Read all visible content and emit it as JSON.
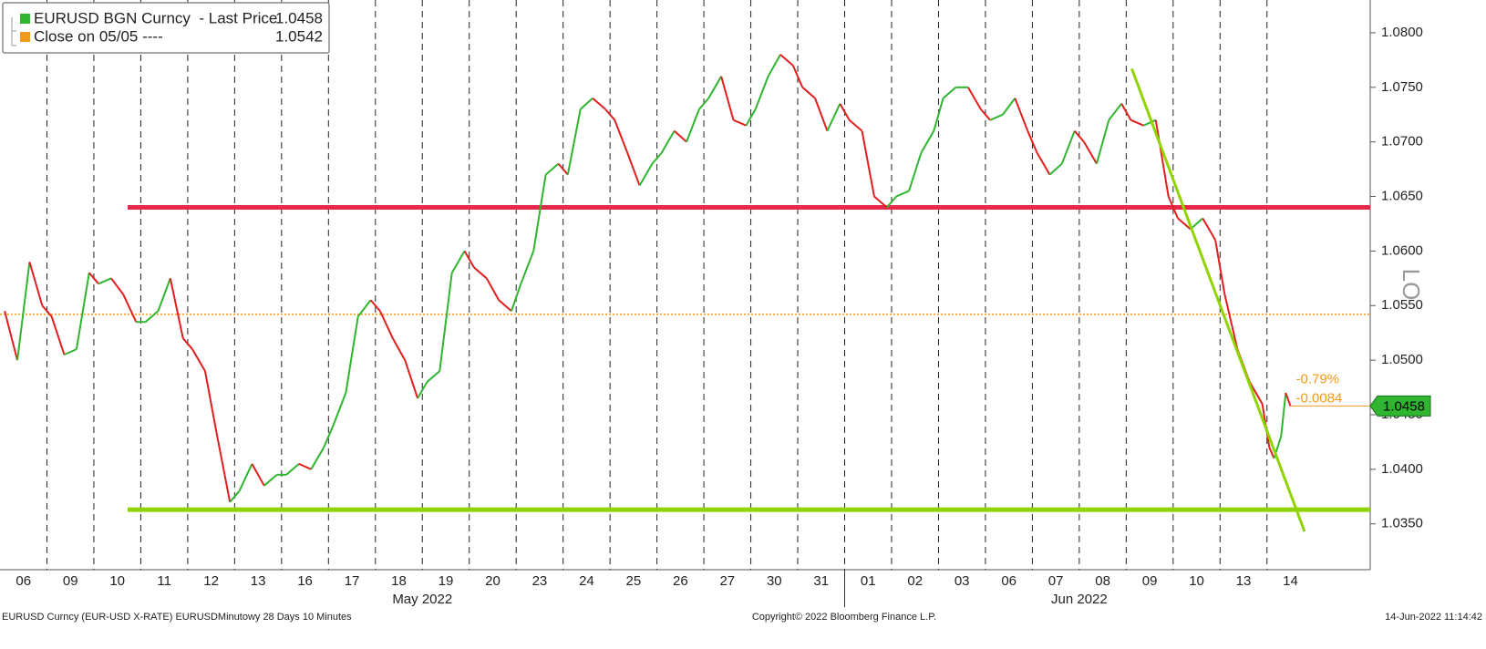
{
  "chart_data": {
    "type": "line",
    "legend": [
      {
        "label": "EURUSD BGN Curncy  - Last Price",
        "value": 1.0458,
        "color": "#2fb52f"
      },
      {
        "label": "Close on 05/05 ----",
        "value": 1.0542,
        "color": "#f09a1c"
      }
    ],
    "x": [
      0.1,
      0.37,
      0.63,
      0.9,
      1.1,
      1.37,
      1.63,
      1.9,
      2.1,
      2.37,
      2.63,
      2.9,
      3.1,
      3.37,
      3.63,
      3.9,
      4.1,
      4.37,
      4.63,
      4.9,
      5.1,
      5.37,
      5.63,
      5.9,
      6.1,
      6.37,
      6.63,
      6.9,
      7.1,
      7.37,
      7.63,
      7.9,
      8.1,
      8.37,
      8.63,
      8.9,
      9.1,
      9.37,
      9.63,
      9.9,
      10.1,
      10.37,
      10.63,
      10.9,
      11.1,
      11.37,
      11.63,
      11.9,
      12.1,
      12.37,
      12.63,
      12.9,
      13.1,
      13.37,
      13.63,
      13.9,
      14.1,
      14.37,
      14.63,
      14.9,
      15.1,
      15.37,
      15.63,
      15.9,
      16.1,
      16.37,
      16.63,
      16.9,
      17.1,
      17.37,
      17.63,
      17.9,
      18.1,
      18.37,
      18.63,
      18.9,
      19.1,
      19.37,
      19.63,
      19.9,
      20.1,
      20.37,
      20.63,
      20.9,
      21.1,
      21.37,
      21.63,
      21.9,
      22.1,
      22.37,
      22.63,
      22.9,
      23.1,
      23.37,
      23.63,
      23.9,
      24.1,
      24.37,
      24.63,
      24.9,
      25.1,
      25.37,
      25.63,
      25.9,
      26.1,
      26.37,
      26.63,
      26.9,
      27.05,
      27.15,
      27.3,
      27.4,
      27.5
    ],
    "series": [
      {
        "name": "EURUSD BGN Curncy",
        "values": [
          1.0545,
          1.05,
          1.059,
          1.055,
          1.054,
          1.0505,
          1.051,
          1.058,
          1.057,
          1.0575,
          1.056,
          1.0535,
          1.0535,
          1.0545,
          1.0575,
          1.052,
          1.051,
          1.049,
          1.043,
          1.037,
          1.038,
          1.0405,
          1.0385,
          1.0395,
          1.0395,
          1.0405,
          1.04,
          1.042,
          1.044,
          1.047,
          1.054,
          1.0555,
          1.0545,
          1.052,
          1.05,
          1.0465,
          1.048,
          1.049,
          1.058,
          1.06,
          1.0585,
          1.0575,
          1.0555,
          1.0545,
          1.057,
          1.06,
          1.067,
          1.068,
          1.067,
          1.073,
          1.074,
          1.073,
          1.072,
          1.069,
          1.066,
          1.068,
          1.069,
          1.071,
          1.07,
          1.073,
          1.074,
          1.076,
          1.072,
          1.0715,
          1.073,
          1.076,
          1.078,
          1.077,
          1.075,
          1.074,
          1.071,
          1.0735,
          1.072,
          1.071,
          1.065,
          1.064,
          1.065,
          1.0655,
          1.069,
          1.071,
          1.074,
          1.075,
          1.075,
          1.073,
          1.072,
          1.0725,
          1.074,
          1.071,
          1.069,
          1.067,
          1.068,
          1.071,
          1.07,
          1.068,
          1.072,
          1.0735,
          1.072,
          1.0715,
          1.072,
          1.065,
          1.063,
          1.062,
          1.063,
          1.061,
          1.056,
          1.051,
          1.048,
          1.046,
          1.042,
          1.041,
          1.043,
          1.047,
          1.0458
        ]
      }
    ],
    "up_color": "#2fb52f",
    "down_color": "#e31e1e",
    "xlim": [
      0,
      29.2
    ],
    "xticks": [
      {
        "value": 0.5,
        "label": "06"
      },
      {
        "value": 1.5,
        "label": "09"
      },
      {
        "value": 2.5,
        "label": "10"
      },
      {
        "value": 3.5,
        "label": "11"
      },
      {
        "value": 4.5,
        "label": "12"
      },
      {
        "value": 5.5,
        "label": "13"
      },
      {
        "value": 6.5,
        "label": "16"
      },
      {
        "value": 7.5,
        "label": "17"
      },
      {
        "value": 8.5,
        "label": "18"
      },
      {
        "value": 9.5,
        "label": "19"
      },
      {
        "value": 10.5,
        "label": "20"
      },
      {
        "value": 11.5,
        "label": "23"
      },
      {
        "value": 12.5,
        "label": "24"
      },
      {
        "value": 13.5,
        "label": "25"
      },
      {
        "value": 14.5,
        "label": "26"
      },
      {
        "value": 15.5,
        "label": "27"
      },
      {
        "value": 16.5,
        "label": "30"
      },
      {
        "value": 17.5,
        "label": "31"
      },
      {
        "value": 18.5,
        "label": "01"
      },
      {
        "value": 19.5,
        "label": "02"
      },
      {
        "value": 20.5,
        "label": "03"
      },
      {
        "value": 21.5,
        "label": "06"
      },
      {
        "value": 22.5,
        "label": "07"
      },
      {
        "value": 23.5,
        "label": "08"
      },
      {
        "value": 24.5,
        "label": "09"
      },
      {
        "value": 25.5,
        "label": "10"
      },
      {
        "value": 26.5,
        "label": "13"
      },
      {
        "value": 27.5,
        "label": "14"
      }
    ],
    "months": [
      {
        "label": "May 2022",
        "from": 0,
        "to": 18
      },
      {
        "label": "Jun 2022",
        "from": 18,
        "to": 28
      }
    ],
    "ylim": [
      1.0308,
      1.083
    ],
    "yticks": [
      {
        "value": 1.035,
        "label": "1.0350"
      },
      {
        "value": 1.04,
        "label": "1.0400"
      },
      {
        "value": 1.045,
        "label": "1.0450"
      },
      {
        "value": 1.05,
        "label": "1.0500"
      },
      {
        "value": 1.055,
        "label": "1.0550"
      },
      {
        "value": 1.06,
        "label": "1.0600"
      },
      {
        "value": 1.065,
        "label": "1.0650"
      },
      {
        "value": 1.07,
        "label": "1.0700"
      },
      {
        "value": 1.075,
        "label": "1.0750"
      },
      {
        "value": 1.08,
        "label": "1.0800"
      }
    ],
    "levels": [
      {
        "value": 1.064,
        "from": 2.72,
        "color": "#e8284a"
      },
      {
        "value": 1.0363,
        "from": 2.72,
        "color": "#8fd400"
      }
    ],
    "trendline": {
      "from": [
        24.12,
        1.0767
      ],
      "to": [
        27.8,
        1.0343
      ],
      "color": "#8fd400"
    },
    "change_labels": [
      "-0.79%",
      "-0.0084"
    ],
    "axis_annotation": "LO",
    "footer": [
      "EURUSD Curncy (EUR-USD X-RATE) EURUSDMinutowy 28 Days 10 Minutes",
      "Copyright© 2022 Bloomberg Finance L.P.",
      "14-Jun-2022 11:14:42"
    ]
  }
}
